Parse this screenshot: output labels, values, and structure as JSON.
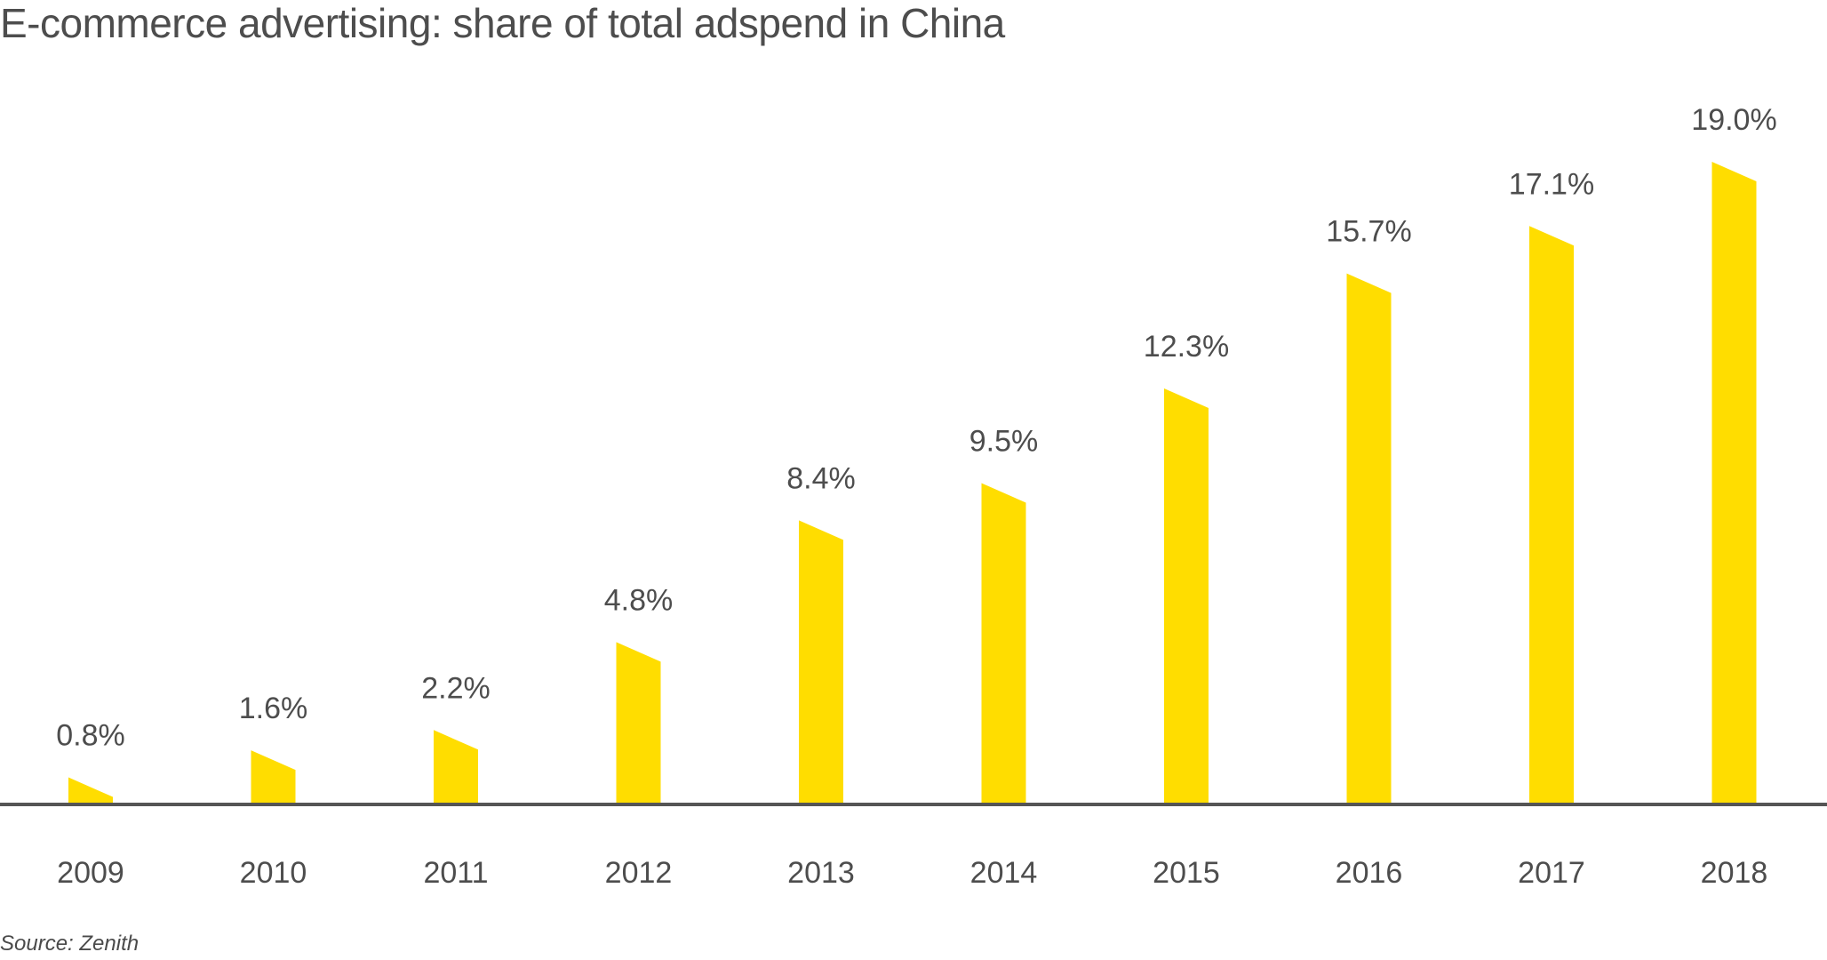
{
  "chart_data": {
    "type": "bar",
    "title": "E-commerce advertising: share of total adspend in China",
    "xlabel": "",
    "ylabel": "",
    "categories": [
      "2009",
      "2010",
      "2011",
      "2012",
      "2013",
      "2014",
      "2015",
      "2016",
      "2017",
      "2018"
    ],
    "values": [
      0.8,
      1.6,
      2.2,
      4.8,
      8.4,
      9.5,
      12.3,
      15.7,
      17.1,
      19.0
    ],
    "data_labels": [
      "0.8%",
      "1.6%",
      "2.2%",
      "4.8%",
      "8.4%",
      "9.5%",
      "12.3%",
      "15.7%",
      "17.1%",
      "19.0%"
    ],
    "unit": "%",
    "ylim": [
      0,
      19.0
    ],
    "grid": false,
    "legend": "none",
    "bar_color": "#FFDD00",
    "axis_color": "#555555",
    "source": "Source: Zenith"
  }
}
